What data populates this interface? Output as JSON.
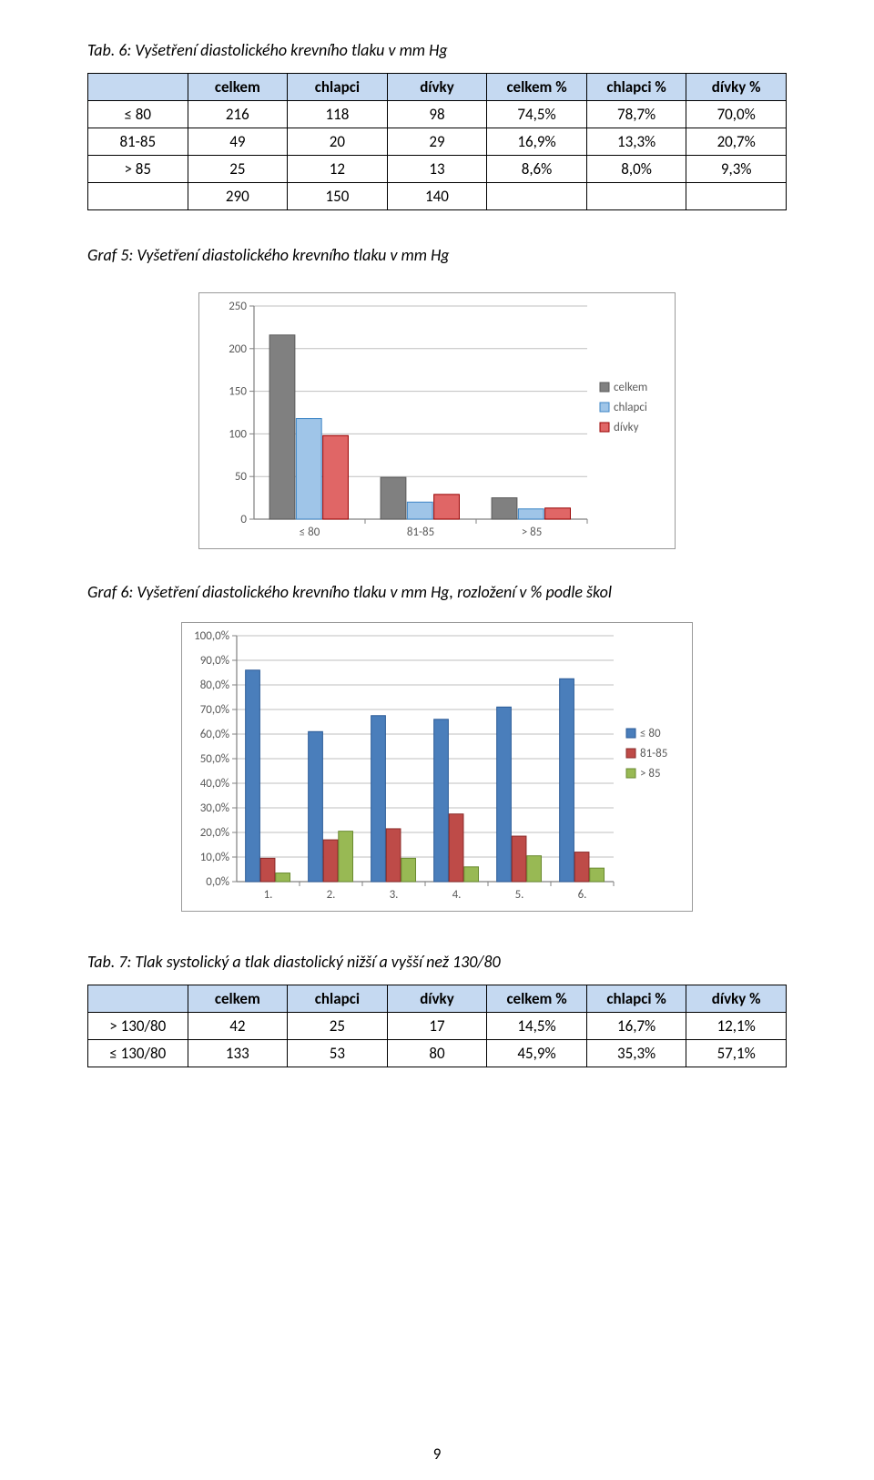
{
  "tab6": {
    "title": "Tab. 6: Vyšetření diastolického krevního tlaku v mm Hg",
    "columns": [
      "",
      "celkem",
      "chlapci",
      "dívky",
      "celkem %",
      "chlapci %",
      "dívky %"
    ],
    "rows": [
      [
        "≤ 80",
        "216",
        "118",
        "98",
        "74,5%",
        "78,7%",
        "70,0%"
      ],
      [
        "81-85",
        "49",
        "20",
        "29",
        "16,9%",
        "13,3%",
        "20,7%"
      ],
      [
        "> 85",
        "25",
        "12",
        "13",
        "8,6%",
        "8,0%",
        "9,3%"
      ],
      [
        "",
        "290",
        "150",
        "140",
        "",
        "",
        ""
      ]
    ]
  },
  "graf5": {
    "title": "Graf 5: Vyšetření diastolického krevního tlaku v mm Hg",
    "type": "bar",
    "categories": [
      "≤ 80",
      "81-85",
      "> 85"
    ],
    "series": [
      {
        "name": "celkem",
        "color": "#808080",
        "border": "#5a5a5a",
        "values": [
          216,
          49,
          25
        ]
      },
      {
        "name": "chlapci",
        "color": "#9fc5e8",
        "border": "#3d85c6",
        "values": [
          118,
          20,
          12
        ]
      },
      {
        "name": "dívky",
        "color": "#e06666",
        "border": "#990000",
        "values": [
          98,
          29,
          13
        ]
      }
    ],
    "ylim": [
      0,
      250
    ],
    "ytick_step": 50,
    "plot_bg": "#ffffff",
    "axis_color": "#808080",
    "grid_color": "#bfbfbf",
    "font_size": 13
  },
  "graf6": {
    "title": "Graf 6: Vyšetření diastolického krevního tlaku v mm Hg, rozložení v % podle škol",
    "type": "bar",
    "categories": [
      "1.",
      "2.",
      "3.",
      "4.",
      "5.",
      "6."
    ],
    "series": [
      {
        "name": "≤ 80",
        "color": "#4a7ebb",
        "border": "#2a5a97",
        "values": [
          86.0,
          61.0,
          67.5,
          66.0,
          71.0,
          82.5
        ]
      },
      {
        "name": "81-85",
        "color": "#be4b48",
        "border": "#8a2a28",
        "values": [
          9.5,
          17.0,
          21.5,
          27.5,
          18.5,
          12.0
        ]
      },
      {
        "name": "> 85",
        "color": "#98b954",
        "border": "#6a8a30",
        "values": [
          3.5,
          20.5,
          9.5,
          6.0,
          10.5,
          5.5
        ]
      }
    ],
    "ylim": [
      0,
      100
    ],
    "ytick_step": 10,
    "ytick_fmt": "pct",
    "plot_bg": "#ffffff",
    "axis_color": "#808080",
    "grid_color": "#bfbfbf",
    "font_size": 13
  },
  "tab7": {
    "title": "Tab. 7: Tlak systolický a tlak diastolický nižší a vyšší než 130/80",
    "columns": [
      "",
      "celkem",
      "chlapci",
      "dívky",
      "celkem %",
      "chlapci %",
      "dívky %"
    ],
    "rows": [
      [
        "> 130/80",
        "42",
        "25",
        "17",
        "14,5%",
        "16,7%",
        "12,1%"
      ],
      [
        "≤ 130/80",
        "133",
        "53",
        "80",
        "45,9%",
        "35,3%",
        "57,1%"
      ]
    ]
  },
  "page_number": "9"
}
